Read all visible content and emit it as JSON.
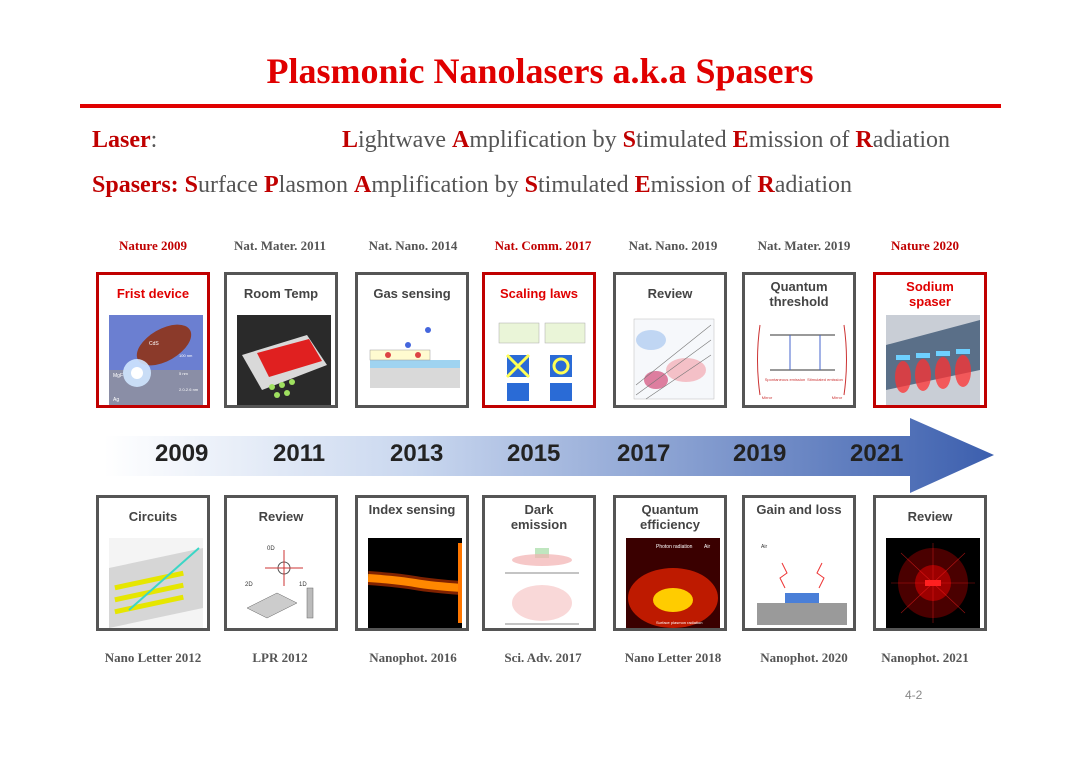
{
  "title": "Plasmonic Nanolasers a.k.a Spasers",
  "definitions": {
    "laser_term": "Laser",
    "laser_colon": ":",
    "laser_expansion": [
      {
        "k": "L",
        "t": "ightwave "
      },
      {
        "k": "A",
        "t": "mplification by "
      },
      {
        "k": "S",
        "t": "timulated "
      },
      {
        "k": "E",
        "t": "mission of "
      },
      {
        "k": "R",
        "t": "adiation"
      }
    ],
    "spaser_term": "Spasers:",
    "spaser_expansion": [
      {
        "k": "S",
        "t": "urface "
      },
      {
        "k": "P",
        "t": "lasmon "
      },
      {
        "k": "A",
        "t": "mplification by "
      },
      {
        "k": "S",
        "t": "timulated "
      },
      {
        "k": "E",
        "t": "mission of "
      },
      {
        "k": "R",
        "t": "adiation"
      }
    ]
  },
  "top_journals": [
    {
      "text": "Nature 2009",
      "highlight": true
    },
    {
      "text": "Nat. Mater. 2011",
      "highlight": false
    },
    {
      "text": "Nat. Nano. 2014",
      "highlight": false
    },
    {
      "text": "Nat. Comm. 2017",
      "highlight": true
    },
    {
      "text": "Nat. Nano. 2019",
      "highlight": false
    },
    {
      "text": "Nat. Mater. 2019",
      "highlight": false
    },
    {
      "text": "Nature 2020",
      "highlight": true
    }
  ],
  "top_panels": [
    {
      "label": "Frist device",
      "highlight": true
    },
    {
      "label": "Room Temp",
      "highlight": false
    },
    {
      "label": "Gas sensing",
      "highlight": false
    },
    {
      "label": "Scaling laws",
      "highlight": true
    },
    {
      "label": "Review",
      "highlight": false
    },
    {
      "label": "Quantum threshold",
      "highlight": false
    },
    {
      "label": "Sodium spaser",
      "highlight": true
    }
  ],
  "years": [
    "2009",
    "2011",
    "2013",
    "2015",
    "2017",
    "2019",
    "2021"
  ],
  "bottom_panels": [
    {
      "label": "Circuits"
    },
    {
      "label": "Review"
    },
    {
      "label": "Index sensing"
    },
    {
      "label": "Dark emission"
    },
    {
      "label": "Quantum efficiency"
    },
    {
      "label": "Gain and loss"
    },
    {
      "label": "Review"
    }
  ],
  "bottom_journals": [
    "Nano Letter 2012",
    "LPR 2012",
    "Nanophot. 2016",
    "Sci. Adv. 2017",
    "Nano Letter 2018",
    "Nanophot. 2020",
    "Nanophot. 2021"
  ],
  "figure_text": {
    "cds": "CdS",
    "mgf2": "MgF",
    "ag": "Ag",
    "dim1": "100 nm",
    "dim2": "5 nm",
    "dim3": "2.0-2.6 nm",
    "d0": "0D",
    "d1": "1D",
    "d2": "2D",
    "photon_radiation": "Photon radiation",
    "surface_plasmon_radiation": "Surface plasmon radiation",
    "air": "Air",
    "spontaneous": "Spontaneous emission",
    "stimulated": "Stimulated emission",
    "mirror": "Mirror"
  },
  "page_number": "4-2",
  "colors": {
    "accent_red": "#e00000",
    "frame_gray": "#555555",
    "arrow_blue": "#3f63b0"
  }
}
